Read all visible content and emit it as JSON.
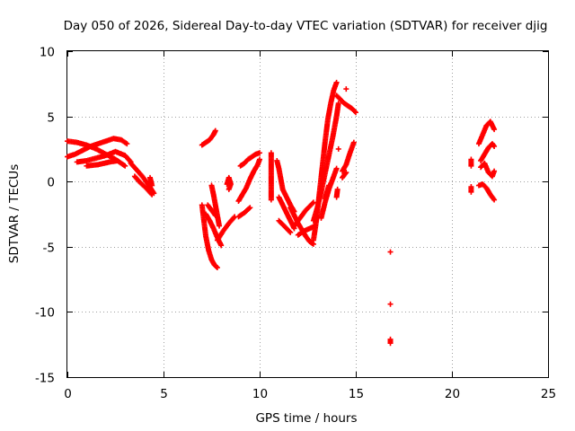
{
  "chart_data": {
    "type": "scatter",
    "title": "Day 050 of 2026, Sidereal Day-to-day VTEC variation (SDTVAR) for receiver djig",
    "xlabel": "GPS time / hours",
    "ylabel": "SDTVAR / TECUs",
    "xlim": [
      0,
      25
    ],
    "ylim": [
      -15,
      10
    ],
    "x_ticks": [
      0,
      5,
      10,
      15,
      20,
      25
    ],
    "y_ticks": [
      -15,
      -10,
      -5,
      0,
      5,
      10
    ],
    "x_tick_labels": [
      "0",
      "5",
      "10",
      "15",
      "20",
      "25"
    ],
    "y_tick_labels": [
      "-15",
      "-10",
      "-5",
      "0",
      "5",
      "10"
    ],
    "grid": true,
    "marker": "+",
    "color": "#ff0000",
    "segments": [
      [
        [
          0.0,
          3.1
        ],
        [
          0.5,
          3.0
        ],
        [
          1.0,
          2.8
        ],
        [
          1.5,
          2.5
        ],
        [
          2.0,
          2.1
        ],
        [
          2.5,
          1.7
        ],
        [
          3.0,
          1.2
        ]
      ],
      [
        [
          0.0,
          1.9
        ],
        [
          0.4,
          2.1
        ],
        [
          0.8,
          2.4
        ],
        [
          1.2,
          2.7
        ],
        [
          1.6,
          2.9
        ],
        [
          2.0,
          3.1
        ],
        [
          2.4,
          3.3
        ],
        [
          2.8,
          3.2
        ],
        [
          3.1,
          2.9
        ]
      ],
      [
        [
          0.5,
          1.5
        ],
        [
          1.0,
          1.6
        ],
        [
          1.5,
          1.8
        ],
        [
          2.0,
          2.0
        ],
        [
          2.5,
          2.3
        ],
        [
          3.0,
          2.0
        ],
        [
          3.3,
          1.5
        ]
      ],
      [
        [
          1.0,
          1.2
        ],
        [
          1.6,
          1.3
        ],
        [
          2.2,
          1.5
        ],
        [
          2.6,
          1.6
        ]
      ],
      [
        [
          3.3,
          1.4
        ],
        [
          3.6,
          0.9
        ],
        [
          3.9,
          0.4
        ],
        [
          4.2,
          -0.2
        ],
        [
          4.5,
          -0.9
        ]
      ],
      [
        [
          3.5,
          0.4
        ],
        [
          3.8,
          -0.1
        ],
        [
          4.1,
          -0.5
        ],
        [
          4.4,
          -1.0
        ]
      ],
      [
        [
          4.3,
          0.3
        ],
        [
          4.4,
          -0.3
        ]
      ],
      [
        [
          7.0,
          2.8
        ],
        [
          7.2,
          3.0
        ],
        [
          7.4,
          3.2
        ],
        [
          7.6,
          3.6
        ],
        [
          7.7,
          3.9
        ]
      ],
      [
        [
          7.0,
          -1.8
        ],
        [
          7.1,
          -3.0
        ],
        [
          7.2,
          -4.2
        ],
        [
          7.35,
          -5.3
        ],
        [
          7.5,
          -6.0
        ],
        [
          7.65,
          -6.4
        ],
        [
          7.8,
          -6.6
        ]
      ],
      [
        [
          7.5,
          -0.3
        ],
        [
          7.6,
          -1.0
        ],
        [
          7.7,
          -1.8
        ],
        [
          7.8,
          -2.6
        ],
        [
          7.9,
          -3.4
        ]
      ],
      [
        [
          7.2,
          -2.5
        ],
        [
          7.4,
          -3.0
        ],
        [
          7.6,
          -3.6
        ],
        [
          7.8,
          -4.3
        ],
        [
          8.0,
          -4.9
        ]
      ],
      [
        [
          7.3,
          -1.8
        ],
        [
          7.5,
          -2.2
        ],
        [
          7.7,
          -2.6
        ]
      ],
      [
        [
          8.3,
          -0.2
        ],
        [
          8.4,
          0.3
        ],
        [
          8.5,
          -0.2
        ],
        [
          8.4,
          -0.6
        ]
      ],
      [
        [
          7.8,
          -4.5
        ],
        [
          8.1,
          -3.8
        ],
        [
          8.4,
          -3.2
        ],
        [
          8.7,
          -2.7
        ]
      ],
      [
        [
          9.0,
          1.2
        ],
        [
          9.2,
          1.4
        ],
        [
          9.4,
          1.7
        ],
        [
          9.6,
          1.9
        ],
        [
          9.8,
          2.1
        ],
        [
          10.0,
          2.2
        ]
      ],
      [
        [
          8.9,
          -1.5
        ],
        [
          9.1,
          -1.0
        ],
        [
          9.3,
          -0.5
        ],
        [
          9.5,
          0.2
        ],
        [
          9.7,
          0.8
        ],
        [
          9.9,
          1.3
        ],
        [
          10.0,
          1.7
        ]
      ],
      [
        [
          8.9,
          -2.7
        ],
        [
          9.2,
          -2.4
        ],
        [
          9.5,
          -2.0
        ]
      ],
      [
        [
          10.6,
          2.2
        ],
        [
          10.6,
          1.6
        ],
        [
          10.6,
          1.0
        ],
        [
          10.6,
          0.2
        ],
        [
          10.6,
          -0.6
        ],
        [
          10.6,
          -1.4
        ]
      ],
      [
        [
          10.9,
          1.6
        ],
        [
          11.0,
          1.0
        ],
        [
          11.1,
          0.2
        ],
        [
          11.2,
          -0.6
        ],
        [
          11.4,
          -1.2
        ],
        [
          11.6,
          -1.8
        ],
        [
          11.8,
          -2.3
        ]
      ],
      [
        [
          11.0,
          -1.2
        ],
        [
          11.2,
          -1.8
        ],
        [
          11.4,
          -2.4
        ],
        [
          11.6,
          -3.0
        ],
        [
          11.8,
          -3.6
        ]
      ],
      [
        [
          11.0,
          -3.0
        ],
        [
          11.2,
          -3.3
        ],
        [
          11.4,
          -3.6
        ],
        [
          11.6,
          -3.9
        ]
      ],
      [
        [
          11.6,
          -2.0
        ],
        [
          11.8,
          -2.6
        ],
        [
          12.0,
          -3.2
        ],
        [
          12.2,
          -3.7
        ],
        [
          12.4,
          -4.2
        ],
        [
          12.6,
          -4.6
        ],
        [
          12.8,
          -4.8
        ]
      ],
      [
        [
          11.8,
          -3.4
        ],
        [
          12.0,
          -3.0
        ],
        [
          12.2,
          -2.6
        ],
        [
          12.4,
          -2.2
        ],
        [
          12.6,
          -1.9
        ],
        [
          12.8,
          -1.6
        ]
      ],
      [
        [
          12.0,
          -4.1
        ],
        [
          12.3,
          -3.8
        ],
        [
          12.6,
          -3.6
        ],
        [
          12.9,
          -3.4
        ]
      ],
      [
        [
          12.8,
          -4.5
        ],
        [
          12.95,
          -3.0
        ],
        [
          13.1,
          -1.0
        ],
        [
          13.25,
          1.0
        ],
        [
          13.4,
          3.0
        ],
        [
          13.55,
          4.8
        ],
        [
          13.7,
          6.0
        ],
        [
          13.85,
          7.0
        ],
        [
          14.0,
          7.6
        ]
      ],
      [
        [
          12.8,
          -3.0
        ],
        [
          13.0,
          -2.0
        ],
        [
          13.2,
          -0.8
        ],
        [
          13.4,
          0.6
        ],
        [
          13.6,
          2.0
        ],
        [
          13.8,
          3.4
        ],
        [
          14.0,
          5.0
        ],
        [
          14.1,
          6.0
        ]
      ],
      [
        [
          13.2,
          -2.8
        ],
        [
          13.4,
          -1.6
        ],
        [
          13.6,
          -0.6
        ],
        [
          13.8,
          0.2
        ],
        [
          14.0,
          1.0
        ]
      ],
      [
        [
          13.4,
          -1.3
        ],
        [
          13.5,
          -0.8
        ],
        [
          13.6,
          -0.3
        ]
      ],
      [
        [
          14.0,
          -1.2
        ],
        [
          14.05,
          -0.6
        ]
      ],
      [
        [
          14.1,
          2.5
        ]
      ],
      [
        [
          14.3,
          0.8
        ],
        [
          14.5,
          1.3
        ],
        [
          14.7,
          2.2
        ],
        [
          14.9,
          3.0
        ]
      ],
      [
        [
          14.0,
          6.6
        ],
        [
          14.2,
          6.3
        ],
        [
          14.4,
          6.0
        ],
        [
          14.6,
          5.8
        ],
        [
          14.8,
          5.6
        ],
        [
          15.0,
          5.3
        ]
      ],
      [
        [
          14.5,
          7.1
        ]
      ],
      [
        [
          14.3,
          0.3
        ],
        [
          14.5,
          0.7
        ]
      ],
      [
        [
          16.8,
          -5.4
        ]
      ],
      [
        [
          16.8,
          -9.4
        ]
      ],
      [
        [
          16.8,
          -12.1
        ],
        [
          16.8,
          -12.4
        ]
      ],
      [
        [
          21.0,
          1.7
        ],
        [
          21.0,
          1.2
        ]
      ],
      [
        [
          21.0,
          -0.4
        ],
        [
          21.0,
          -0.8
        ]
      ],
      [
        [
          21.4,
          2.9
        ],
        [
          21.6,
          3.6
        ],
        [
          21.8,
          4.3
        ],
        [
          22.0,
          4.6
        ],
        [
          22.2,
          4.0
        ]
      ],
      [
        [
          21.5,
          1.6
        ],
        [
          21.7,
          2.1
        ],
        [
          21.9,
          2.6
        ],
        [
          22.1,
          2.9
        ],
        [
          22.2,
          2.7
        ]
      ],
      [
        [
          21.5,
          1.1
        ],
        [
          21.7,
          1.4
        ],
        [
          21.9,
          0.7
        ],
        [
          22.1,
          0.4
        ],
        [
          22.2,
          0.8
        ]
      ],
      [
        [
          21.4,
          -0.3
        ],
        [
          21.6,
          -0.2
        ],
        [
          21.8,
          -0.5
        ],
        [
          22.0,
          -1.0
        ],
        [
          22.2,
          -1.4
        ]
      ]
    ]
  }
}
